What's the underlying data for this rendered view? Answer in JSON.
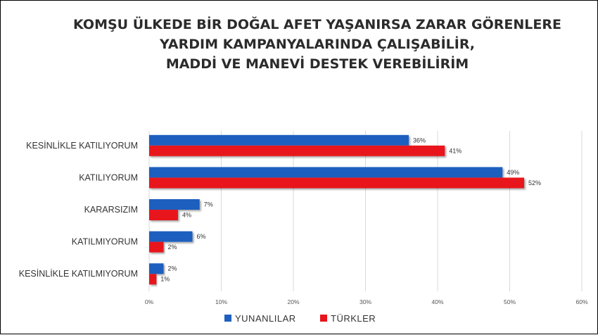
{
  "chart_data": {
    "type": "bar",
    "orientation": "horizontal",
    "title": [
      "KOMŞU ÜLKEDE BİR DOĞAL AFET YAŞANIRSA  ZARAR GÖRENLERE",
      "YARDIM KAMPANYALARINDA ÇALIŞABİLİR,",
      "MADDİ VE MANEVİ DESTEK VEREBİLİRİM"
    ],
    "categories": [
      "KESİNLİKLE KATILIYORUM",
      "KATILIYORUM",
      "KARARSIZIM",
      "KATILMIYORUM",
      "KESİNLİKLE KATILMIYORUM"
    ],
    "series": [
      {
        "name": "YUNANLILAR",
        "color": "#1f5fbf",
        "values": [
          36,
          49,
          7,
          6,
          2
        ],
        "labels": [
          "36%",
          "49%",
          "7%",
          "6%",
          "2%"
        ]
      },
      {
        "name": "TÜRKLER",
        "color": "#e8131c",
        "values": [
          41,
          52,
          4,
          2,
          1
        ],
        "labels": [
          "41%",
          "52%",
          "4%",
          "2%",
          "1%"
        ]
      }
    ],
    "xlim": [
      0,
      60
    ],
    "xticks": [
      0,
      10,
      20,
      30,
      40,
      50,
      60
    ],
    "xtick_labels": [
      "0%",
      "10%",
      "20%",
      "30%",
      "40%",
      "50%",
      "60%"
    ],
    "grid": true,
    "legend_position": "bottom"
  }
}
